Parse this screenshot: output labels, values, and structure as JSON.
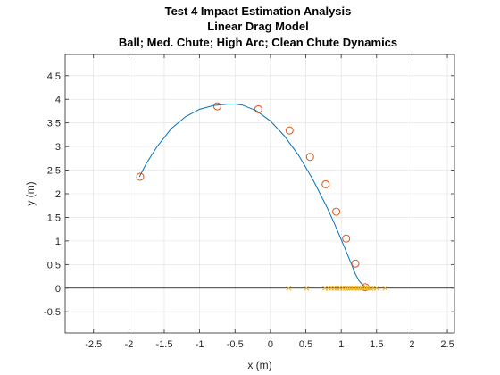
{
  "chart_data": {
    "type": "scatter",
    "title": [
      "Test 4 Impact Estimation Analysis",
      "Linear Drag Model",
      "Ball; Med. Chute; High Arc; Clean Chute Dynamics"
    ],
    "xlabel": "x (m)",
    "ylabel": "y (m)",
    "xlim": [
      -2.9,
      2.6
    ],
    "ylim": [
      -0.95,
      4.95
    ],
    "xticks": [
      -2.5,
      -2,
      -1.5,
      -1,
      -0.5,
      0,
      0.5,
      1,
      1.5,
      2,
      2.5
    ],
    "xtick_labels": [
      "-2.5",
      "-2",
      "-1.5",
      "-1",
      "-0.5",
      "0",
      "0.5",
      "1",
      "1.5",
      "2",
      "2.5"
    ],
    "yticks": [
      -0.5,
      0,
      0.5,
      1,
      1.5,
      2,
      2.5,
      3,
      3.5,
      4,
      4.5
    ],
    "ytick_labels": [
      "-0.5",
      "0",
      "0.5",
      "1",
      "1.5",
      "2",
      "2.5",
      "3",
      "3.5",
      "4",
      "4.5"
    ],
    "grid": true,
    "colors": {
      "trajectory": "#0072BD",
      "observations": "#D95319",
      "impact_estimates": "#EDB120",
      "ground": "#000000",
      "grid": "#DFDFDF",
      "axes": "#262626"
    },
    "series": [
      {
        "kind": "line",
        "color": "#0072BD",
        "x": [
          -1.85,
          -1.75,
          -1.6,
          -1.4,
          -1.2,
          -1.0,
          -0.8,
          -0.6,
          -0.5,
          -0.4,
          -0.2,
          0.0,
          0.2,
          0.4,
          0.6,
          0.8,
          0.9,
          1.0,
          1.1,
          1.2,
          1.25,
          1.3,
          1.35
        ],
        "y": [
          2.36,
          2.65,
          3.0,
          3.38,
          3.63,
          3.79,
          3.87,
          3.9,
          3.9,
          3.88,
          3.76,
          3.54,
          3.22,
          2.81,
          2.3,
          1.71,
          1.38,
          1.03,
          0.67,
          0.3,
          0.16,
          0.07,
          0.02
        ]
      },
      {
        "kind": "markers",
        "marker": "circle",
        "color": "#D95319",
        "x": [
          -1.84,
          -0.75,
          -0.17,
          0.27,
          0.56,
          0.78,
          0.93,
          1.07,
          1.2,
          1.34
        ],
        "y": [
          2.36,
          3.85,
          3.79,
          3.34,
          2.78,
          2.2,
          1.62,
          1.05,
          0.52,
          0.02
        ]
      },
      {
        "kind": "markers",
        "marker": "x",
        "color": "#EDB120",
        "x": [
          0.26,
          0.51,
          0.77,
          0.82,
          0.86,
          0.9,
          0.94,
          0.98,
          1.02,
          1.06,
          1.09,
          1.12,
          1.15,
          1.18,
          1.21,
          1.24,
          1.27,
          1.3,
          1.33,
          1.36,
          1.39,
          1.42,
          1.45,
          1.5,
          1.62
        ],
        "y": [
          0,
          0,
          0,
          0,
          0,
          0,
          0,
          0,
          0,
          0,
          0,
          0,
          0,
          0,
          0,
          0,
          0,
          0,
          0,
          0,
          0,
          0,
          0,
          0,
          0
        ]
      }
    ]
  }
}
